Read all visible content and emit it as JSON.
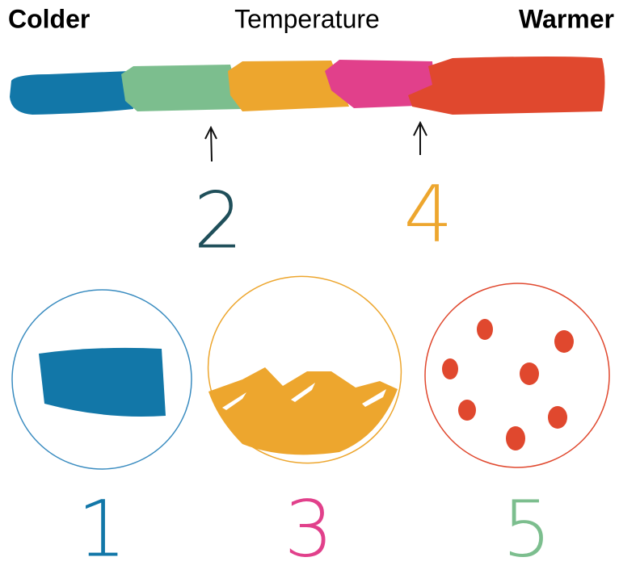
{
  "header": {
    "left": "Colder",
    "center": "Temperature",
    "right": "Warmer"
  },
  "upper_labels": [
    "2",
    "4"
  ],
  "lower_labels": [
    "1",
    "3",
    "5"
  ]
}
